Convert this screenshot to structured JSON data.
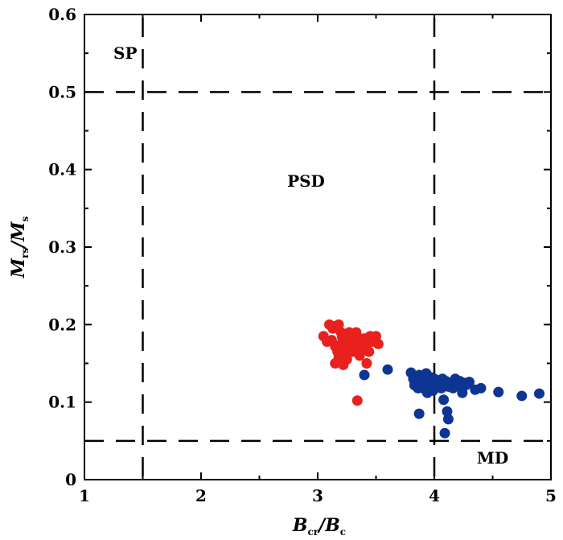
{
  "chart_data": {
    "type": "scatter",
    "xlabel": {
      "main1": "B",
      "sub1": "cr",
      "sep": "/",
      "main2": "B",
      "sub2": "c"
    },
    "ylabel": {
      "main1": "M",
      "sub1": "rs",
      "sep": "/",
      "main2": "M",
      "sub2": "s"
    },
    "xlim": [
      1,
      5
    ],
    "ylim": [
      0,
      0.6
    ],
    "xticks": [
      {
        "value": 1,
        "label": "1"
      },
      {
        "value": 2,
        "label": "2"
      },
      {
        "value": 3,
        "label": "3"
      },
      {
        "value": 4,
        "label": "4"
      },
      {
        "value": 5,
        "label": "5"
      }
    ],
    "yticks": [
      {
        "value": 0,
        "label": "0"
      },
      {
        "value": 0.1,
        "label": "0.1"
      },
      {
        "value": 0.2,
        "label": "0.2"
      },
      {
        "value": 0.3,
        "label": "0.3"
      },
      {
        "value": 0.4,
        "label": "0.4"
      },
      {
        "value": 0.5,
        "label": "0.5"
      },
      {
        "value": 0.6,
        "label": "0.6"
      }
    ],
    "reference_lines": [
      {
        "orientation": "vertical",
        "value": 1.5
      },
      {
        "orientation": "vertical",
        "value": 4
      },
      {
        "orientation": "horizontal",
        "value": 0.5
      },
      {
        "orientation": "horizontal",
        "value": 0.05
      }
    ],
    "regions": [
      {
        "label": "SP",
        "x": 1.35,
        "y": 0.55
      },
      {
        "label": "PSD",
        "x": 2.9,
        "y": 0.385
      },
      {
        "label": "MD",
        "x": 4.5,
        "y": 0.028
      }
    ],
    "series": [
      {
        "color": "#e8201e",
        "points": [
          [
            3.05,
            0.185
          ],
          [
            3.08,
            0.178
          ],
          [
            3.1,
            0.2
          ],
          [
            3.13,
            0.195
          ],
          [
            3.15,
            0.198
          ],
          [
            3.18,
            0.2
          ],
          [
            3.2,
            0.19
          ],
          [
            3.12,
            0.18
          ],
          [
            3.15,
            0.172
          ],
          [
            3.17,
            0.165
          ],
          [
            3.2,
            0.175
          ],
          [
            3.22,
            0.168
          ],
          [
            3.24,
            0.182
          ],
          [
            3.25,
            0.16
          ],
          [
            3.27,
            0.19
          ],
          [
            3.28,
            0.175
          ],
          [
            3.3,
            0.185
          ],
          [
            3.3,
            0.165
          ],
          [
            3.32,
            0.178
          ],
          [
            3.34,
            0.17
          ],
          [
            3.35,
            0.183
          ],
          [
            3.37,
            0.175
          ],
          [
            3.38,
            0.168
          ],
          [
            3.4,
            0.182
          ],
          [
            3.42,
            0.175
          ],
          [
            3.44,
            0.165
          ],
          [
            3.45,
            0.185
          ],
          [
            3.47,
            0.178
          ],
          [
            3.5,
            0.185
          ],
          [
            3.52,
            0.175
          ],
          [
            3.15,
            0.15
          ],
          [
            3.22,
            0.148
          ],
          [
            3.25,
            0.155
          ],
          [
            3.18,
            0.158
          ],
          [
            3.42,
            0.15
          ],
          [
            3.28,
            0.17
          ],
          [
            3.21,
            0.184
          ],
          [
            3.33,
            0.19
          ],
          [
            3.36,
            0.16
          ],
          [
            3.34,
            0.102
          ]
        ]
      },
      {
        "color": "#0d3593",
        "points": [
          [
            3.4,
            0.135
          ],
          [
            3.6,
            0.142
          ],
          [
            3.8,
            0.138
          ],
          [
            3.82,
            0.13
          ],
          [
            3.83,
            0.122
          ],
          [
            3.85,
            0.127
          ],
          [
            3.86,
            0.118
          ],
          [
            3.87,
            0.135
          ],
          [
            3.88,
            0.125
          ],
          [
            3.9,
            0.13
          ],
          [
            3.9,
            0.118
          ],
          [
            3.92,
            0.122
          ],
          [
            3.93,
            0.137
          ],
          [
            3.94,
            0.112
          ],
          [
            3.95,
            0.128
          ],
          [
            3.96,
            0.12
          ],
          [
            3.97,
            0.132
          ],
          [
            3.98,
            0.125
          ],
          [
            4.0,
            0.118
          ],
          [
            4.0,
            0.13
          ],
          [
            4.02,
            0.122
          ],
          [
            4.03,
            0.128
          ],
          [
            4.05,
            0.125
          ],
          [
            4.06,
            0.118
          ],
          [
            4.07,
            0.13
          ],
          [
            4.08,
            0.122
          ],
          [
            4.1,
            0.127
          ],
          [
            4.12,
            0.12
          ],
          [
            4.14,
            0.125
          ],
          [
            4.16,
            0.118
          ],
          [
            4.18,
            0.13
          ],
          [
            4.2,
            0.122
          ],
          [
            4.22,
            0.127
          ],
          [
            4.24,
            0.112
          ],
          [
            4.25,
            0.125
          ],
          [
            4.27,
            0.122
          ],
          [
            4.3,
            0.126
          ],
          [
            4.35,
            0.116
          ],
          [
            4.4,
            0.118
          ],
          [
            4.55,
            0.113
          ],
          [
            4.75,
            0.108
          ],
          [
            4.9,
            0.111
          ],
          [
            3.87,
            0.085
          ],
          [
            4.08,
            0.103
          ],
          [
            4.11,
            0.088
          ],
          [
            4.12,
            0.078
          ],
          [
            4.09,
            0.06
          ],
          [
            3.99,
            0.115
          ]
        ]
      }
    ]
  }
}
